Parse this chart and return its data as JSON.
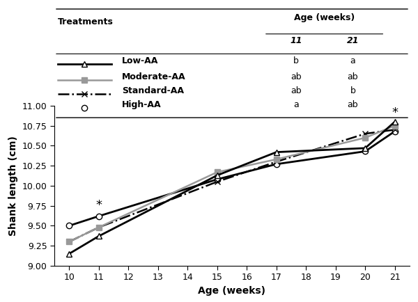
{
  "ages": [
    10,
    11,
    15,
    17,
    20,
    21
  ],
  "low_aa": [
    9.15,
    9.37,
    10.13,
    10.42,
    10.47,
    10.8
  ],
  "moderate_aa": [
    9.3,
    9.48,
    10.17,
    10.33,
    10.6,
    10.75
  ],
  "standard_aa": [
    9.3,
    9.48,
    10.05,
    10.3,
    10.65,
    10.7
  ],
  "high_aa": [
    9.5,
    9.62,
    10.08,
    10.27,
    10.43,
    10.68
  ],
  "xlabel": "Age (weeks)",
  "ylabel": "Shank length (cm)",
  "ylim": [
    9.0,
    11.0
  ],
  "yticks": [
    9.0,
    9.25,
    9.5,
    9.75,
    10.0,
    10.25,
    10.5,
    10.75,
    11.0
  ],
  "xticks": [
    10,
    11,
    12,
    13,
    14,
    15,
    16,
    17,
    18,
    19,
    20,
    21
  ],
  "table_treatments": [
    "Low-AA",
    "Moderate-AA",
    "Standard-AA",
    "High-AA"
  ],
  "table_wk11": [
    "b",
    "ab",
    "ab",
    "a"
  ],
  "table_wk21": [
    "a",
    "ab",
    "b",
    "ab"
  ],
  "linestyles": [
    "solid",
    "solid",
    "dashdot",
    "solid"
  ],
  "markers": [
    "^",
    "s",
    "x",
    "o"
  ],
  "colors": [
    "black",
    "#999999",
    "black",
    "black"
  ],
  "mfcs": [
    "white",
    "#999999",
    "black",
    "white"
  ],
  "linewidths": [
    2.0,
    1.8,
    1.8,
    2.0
  ]
}
